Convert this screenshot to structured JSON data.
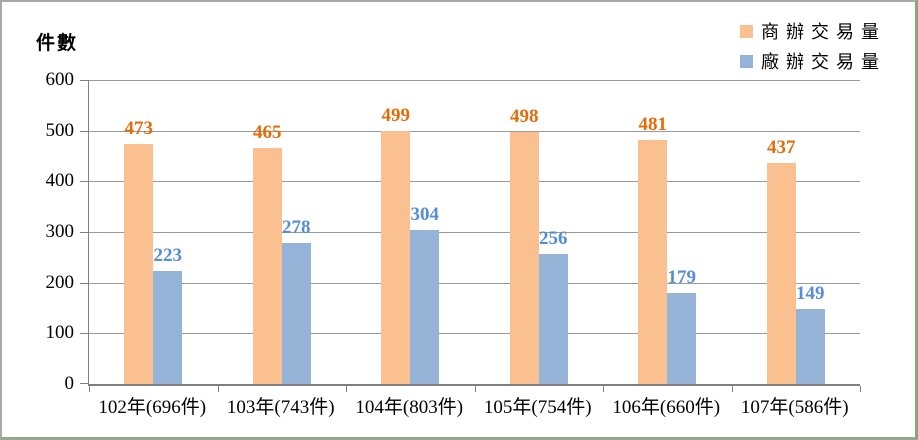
{
  "chart_data": {
    "type": "bar",
    "ylabel": "件數",
    "categories": [
      "102年(696件)",
      "103年(743件)",
      "104年(803件)",
      "105年(754件)",
      "106年(660件)",
      "107年(586件)"
    ],
    "series": [
      {
        "name": "商辦交易量",
        "values": [
          473,
          465,
          499,
          498,
          481,
          437
        ],
        "bar_color": "#FAC090",
        "label_color": "#E36C0A"
      },
      {
        "name": "廠辦交易量",
        "values": [
          223,
          278,
          304,
          256,
          179,
          149
        ],
        "bar_color": "#95B3D7",
        "label_color": "#558ED5"
      }
    ],
    "ylim": [
      0,
      600
    ],
    "ytick_step": 100,
    "ytick_labels": [
      "0",
      "100",
      "200",
      "300",
      "400",
      "500",
      "600"
    ],
    "grid": true,
    "legend_position": "top-right"
  },
  "colors": {
    "gridline": "#9a9a9a",
    "axis": "#7f7f7f",
    "frame_top_left": "#a8a8a8",
    "frame_bottom_right": "#8fa478",
    "background": "#ffffff"
  }
}
